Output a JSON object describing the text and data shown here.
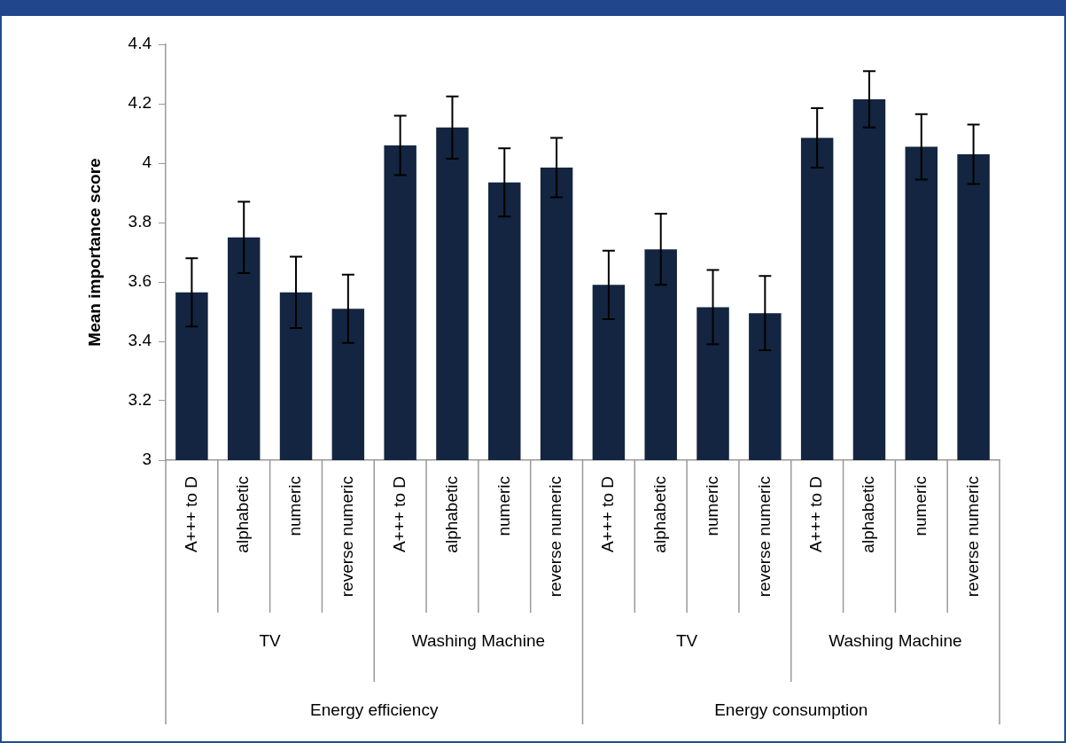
{
  "chart_data": {
    "type": "bar",
    "ylabel": "Mean importance score",
    "categories": [
      "A+++ to D",
      "alphabetic",
      "numeric",
      "reverse numeric",
      "A+++ to D",
      "alphabetic",
      "numeric",
      "reverse numeric",
      "A+++ to D",
      "alphabetic",
      "numeric",
      "reverse numeric",
      "A+++ to D",
      "alphabetic",
      "numeric",
      "reverse numeric"
    ],
    "values": [
      3.565,
      3.75,
      3.565,
      3.51,
      4.06,
      4.12,
      3.935,
      3.985,
      3.59,
      3.71,
      3.515,
      3.495,
      4.085,
      4.215,
      4.055,
      4.03
    ],
    "errors": [
      0.115,
      0.12,
      0.12,
      0.115,
      0.1,
      0.105,
      0.115,
      0.1,
      0.115,
      0.12,
      0.125,
      0.125,
      0.1,
      0.095,
      0.11,
      0.1
    ],
    "color": "#132540",
    "ylim": [
      3,
      4.4
    ],
    "yticks": [
      3,
      3.2,
      3.4,
      3.6,
      3.8,
      4,
      4.2,
      4.4
    ],
    "annotations": [
      "TV",
      "Washing Machine",
      "TV",
      "Washing Machine",
      "Energy efficiency",
      "Energy consumption"
    ],
    "grid": false,
    "legend": false
  }
}
